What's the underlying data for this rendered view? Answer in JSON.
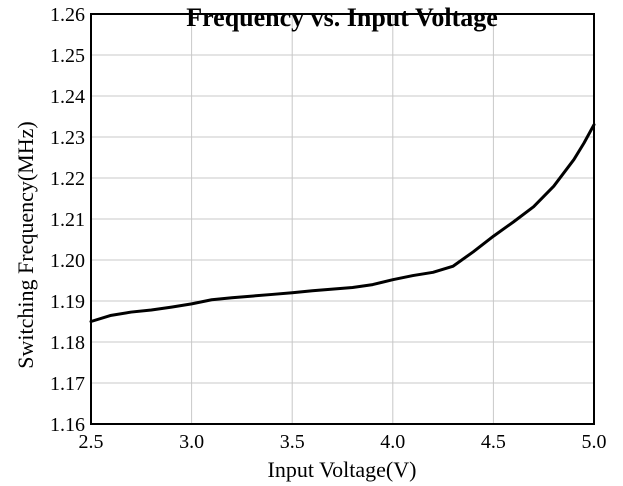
{
  "chart_data": {
    "type": "line",
    "title": "Frequency vs. Input Voltage",
    "xlabel": "Input Voltage(V)",
    "ylabel": "Switching Frequency(MHz)",
    "xlim": [
      2.5,
      5.0
    ],
    "ylim": [
      1.16,
      1.26
    ],
    "grid": true,
    "legend": "none",
    "x_ticks": [
      "2.5",
      "3.0",
      "3.5",
      "4.0",
      "4.5",
      "5.0"
    ],
    "y_ticks": [
      "1.16",
      "1.17",
      "1.18",
      "1.19",
      "1.20",
      "1.21",
      "1.22",
      "1.23",
      "1.24",
      "1.25",
      "1.26"
    ],
    "series": [
      {
        "color": "#000000",
        "x": [
          2.5,
          2.6,
          2.7,
          2.8,
          2.9,
          3.0,
          3.1,
          3.2,
          3.3,
          3.4,
          3.5,
          3.6,
          3.7,
          3.8,
          3.9,
          4.0,
          4.1,
          4.2,
          4.3,
          4.4,
          4.5,
          4.6,
          4.7,
          4.8,
          4.9,
          4.95,
          5.0
        ],
        "y": [
          1.185,
          1.1865,
          1.1873,
          1.1878,
          1.1885,
          1.1893,
          1.1903,
          1.1908,
          1.1912,
          1.1916,
          1.192,
          1.1925,
          1.1929,
          1.1933,
          1.194,
          1.1952,
          1.1962,
          1.197,
          1.1985,
          1.202,
          1.2058,
          1.2093,
          1.213,
          1.218,
          1.2245,
          1.2285,
          1.233
        ]
      }
    ]
  }
}
